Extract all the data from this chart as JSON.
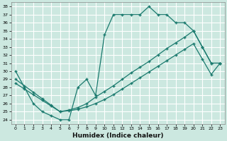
{
  "xlabel": "Humidex (Indice chaleur)",
  "background_color": "#cce8e0",
  "line_color": "#1a7a6e",
  "grid_color": "#ffffff",
  "xlim": [
    -0.5,
    23.5
  ],
  "ylim": [
    23.5,
    38.5
  ],
  "yticks": [
    24,
    25,
    26,
    27,
    28,
    29,
    30,
    31,
    32,
    33,
    34,
    35,
    36,
    37,
    38
  ],
  "xticks": [
    0,
    1,
    2,
    3,
    4,
    5,
    6,
    7,
    8,
    9,
    10,
    11,
    12,
    13,
    14,
    15,
    16,
    17,
    18,
    19,
    20,
    21,
    22,
    23
  ],
  "line1_x": [
    0,
    1,
    2,
    3,
    4,
    5,
    6,
    7,
    8,
    9,
    10,
    11,
    12,
    13,
    14,
    15,
    16,
    17,
    18,
    19,
    20,
    21,
    22,
    23
  ],
  "line1_y": [
    30,
    28,
    26,
    25,
    24.5,
    24,
    24,
    28,
    29,
    27,
    34.5,
    37,
    37,
    37,
    37,
    38,
    37,
    37,
    36,
    36,
    35,
    33,
    31,
    31
  ],
  "line2_x": [
    0,
    1,
    2,
    3,
    4,
    5,
    6,
    7,
    8,
    9,
    10,
    11,
    12,
    13,
    14,
    15,
    16,
    17,
    18,
    19,
    20,
    21,
    22,
    23
  ],
  "line2_y": [
    29,
    28.2,
    27.4,
    26.6,
    25.8,
    25.0,
    25.2,
    25.5,
    26.0,
    26.8,
    27.5,
    28.2,
    29.0,
    29.8,
    30.5,
    31.2,
    32.0,
    32.8,
    33.5,
    34.2,
    35.0,
    33.0,
    31.0,
    31.0
  ],
  "line3_x": [
    0,
    1,
    2,
    3,
    4,
    5,
    6,
    7,
    8,
    9,
    10,
    11,
    12,
    13,
    14,
    15,
    16,
    17,
    18,
    19,
    20,
    21,
    22,
    23
  ],
  "line3_y": [
    28.5,
    27.8,
    27.1,
    26.4,
    25.7,
    25.0,
    25.1,
    25.3,
    25.6,
    26.0,
    26.5,
    27.1,
    27.8,
    28.5,
    29.2,
    29.9,
    30.6,
    31.3,
    32.0,
    32.7,
    33.4,
    31.5,
    29.6,
    31.0
  ]
}
